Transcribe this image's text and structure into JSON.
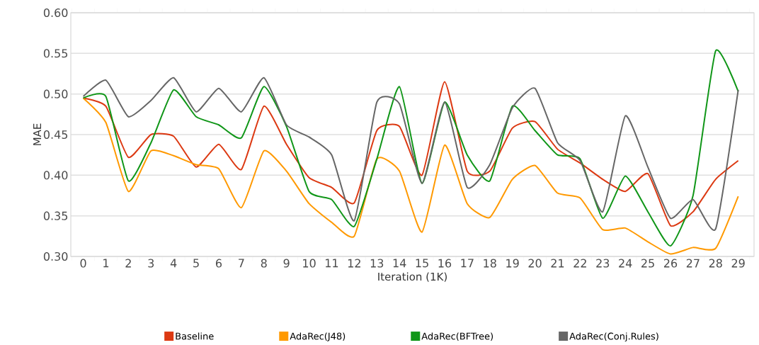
{
  "chart_data": {
    "type": "line",
    "xlabel": "Iteration (1K)",
    "ylabel": "MAE",
    "categories": [
      "0",
      "1",
      "2",
      "3",
      "4",
      "5",
      "6",
      "7",
      "8",
      "9",
      "10",
      "11",
      "12",
      "13",
      "14",
      "15",
      "16",
      "17",
      "18",
      "19",
      "20",
      "21",
      "22",
      "23",
      "24",
      "25",
      "26",
      "27",
      "28",
      "29"
    ],
    "series": [
      {
        "name": "Baseline",
        "color": "#dc3912",
        "values": [
          0.495,
          0.485,
          0.422,
          0.45,
          0.448,
          0.41,
          0.438,
          0.407,
          0.485,
          0.438,
          0.397,
          0.385,
          0.366,
          0.455,
          0.46,
          0.4,
          0.515,
          0.405,
          0.405,
          0.458,
          0.466,
          0.432,
          0.415,
          0.395,
          0.38,
          0.402,
          0.338,
          0.355,
          0.395,
          0.418
        ]
      },
      {
        "name": "AdaRec(J48)",
        "color": "#ff9900",
        "values": [
          0.495,
          0.465,
          0.38,
          0.43,
          0.424,
          0.413,
          0.408,
          0.36,
          0.43,
          0.405,
          0.365,
          0.342,
          0.325,
          0.42,
          0.405,
          0.33,
          0.437,
          0.365,
          0.348,
          0.395,
          0.412,
          0.378,
          0.372,
          0.333,
          0.335,
          0.318,
          0.303,
          0.311,
          0.31,
          0.374
        ]
      },
      {
        "name": "AdaRec(BFTree)",
        "color": "#109618",
        "values": [
          0.495,
          0.497,
          0.393,
          0.44,
          0.505,
          0.472,
          0.462,
          0.446,
          0.509,
          0.46,
          0.38,
          0.37,
          0.337,
          0.42,
          0.509,
          0.39,
          0.49,
          0.425,
          0.393,
          0.485,
          0.455,
          0.425,
          0.42,
          0.347,
          0.399,
          0.355,
          0.313,
          0.375,
          0.553,
          0.503
        ]
      },
      {
        "name": "AdaRec(Conj.Rules)",
        "color": "#666666",
        "values": [
          0.497,
          0.517,
          0.472,
          0.492,
          0.52,
          0.478,
          0.507,
          0.478,
          0.52,
          0.462,
          0.447,
          0.425,
          0.344,
          0.49,
          0.488,
          0.39,
          0.49,
          0.385,
          0.413,
          0.483,
          0.507,
          0.44,
          0.418,
          0.355,
          0.473,
          0.41,
          0.347,
          0.37,
          0.334,
          0.505
        ]
      }
    ],
    "ylim": [
      0.3,
      0.6
    ],
    "yticks": [
      {
        "value": 0.3,
        "label": "0.30"
      },
      {
        "value": 0.35,
        "label": "0.35"
      },
      {
        "value": 0.4,
        "label": "0.40"
      },
      {
        "value": 0.45,
        "label": "0.45"
      },
      {
        "value": 0.5,
        "label": "0.50"
      },
      {
        "value": 0.55,
        "label": "0.55"
      },
      {
        "value": 0.6,
        "label": "0.60"
      }
    ],
    "grid": "y",
    "legend": "bottom",
    "marker": "none",
    "line_style": "solid"
  }
}
